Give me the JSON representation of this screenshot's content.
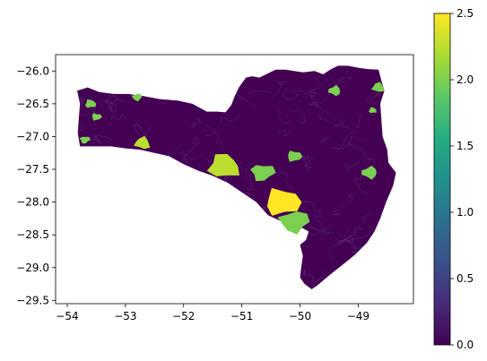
{
  "chart_data": {
    "type": "choropleth-map",
    "title": "",
    "xlabel": "",
    "ylabel": "",
    "xlim": [
      -54.2,
      -48.05
    ],
    "ylim": [
      -29.55,
      -25.75
    ],
    "grid": false,
    "x_ticks": [
      {
        "value": -54,
        "label": "−54"
      },
      {
        "value": -53,
        "label": "−53"
      },
      {
        "value": -52,
        "label": "−52"
      },
      {
        "value": -51,
        "label": "−51"
      },
      {
        "value": -50,
        "label": "−50"
      },
      {
        "value": -49,
        "label": "−49"
      }
    ],
    "y_ticks": [
      {
        "value": -26.0,
        "label": "−26.0"
      },
      {
        "value": -26.5,
        "label": "−26.5"
      },
      {
        "value": -27.0,
        "label": "−27.0"
      },
      {
        "value": -27.5,
        "label": "−27.5"
      },
      {
        "value": -28.0,
        "label": "−28.0"
      },
      {
        "value": -28.5,
        "label": "−28.5"
      },
      {
        "value": -29.0,
        "label": "−29.0"
      },
      {
        "value": -29.5,
        "label": "−29.5"
      }
    ],
    "colorbar": {
      "colormap": "viridis",
      "range": [
        0.0,
        2.5
      ],
      "ticks": [
        {
          "value": 0.0,
          "label": "0.0"
        },
        {
          "value": 0.5,
          "label": "0.5"
        },
        {
          "value": 1.0,
          "label": "1.0"
        },
        {
          "value": 1.5,
          "label": "1.5"
        },
        {
          "value": 2.0,
          "label": "2.0"
        },
        {
          "value": 2.5,
          "label": "2.5"
        }
      ],
      "stops": [
        "#440154",
        "#472c7a",
        "#3b518b",
        "#2c718e",
        "#21908d",
        "#27ad81",
        "#5cc863",
        "#aadc32",
        "#fde725"
      ]
    },
    "background_value": 0.0,
    "highlighted_regions": [
      {
        "value": 2.0,
        "lon": -53.6,
        "lat": -26.5
      },
      {
        "value": 2.0,
        "lon": -53.5,
        "lat": -26.7
      },
      {
        "value": 2.0,
        "lon": -53.7,
        "lat": -27.05
      },
      {
        "value": 2.0,
        "lon": -52.8,
        "lat": -26.4
      },
      {
        "value": 2.0,
        "lon": -49.4,
        "lat": -26.3
      },
      {
        "value": 2.0,
        "lon": -48.65,
        "lat": -26.25
      },
      {
        "value": 2.0,
        "lon": -48.75,
        "lat": -26.6
      },
      {
        "value": 2.0,
        "lon": -50.1,
        "lat": -27.3
      },
      {
        "value": 2.0,
        "lon": -50.65,
        "lat": -27.55
      },
      {
        "value": 2.0,
        "lon": -50.1,
        "lat": -28.3
      },
      {
        "value": 2.0,
        "lon": -48.8,
        "lat": -27.55
      },
      {
        "value": 2.25,
        "lon": -52.7,
        "lat": -27.1
      },
      {
        "value": 2.25,
        "lon": -51.3,
        "lat": -27.45
      },
      {
        "value": 2.5,
        "lon": -50.3,
        "lat": -28.0
      }
    ]
  }
}
